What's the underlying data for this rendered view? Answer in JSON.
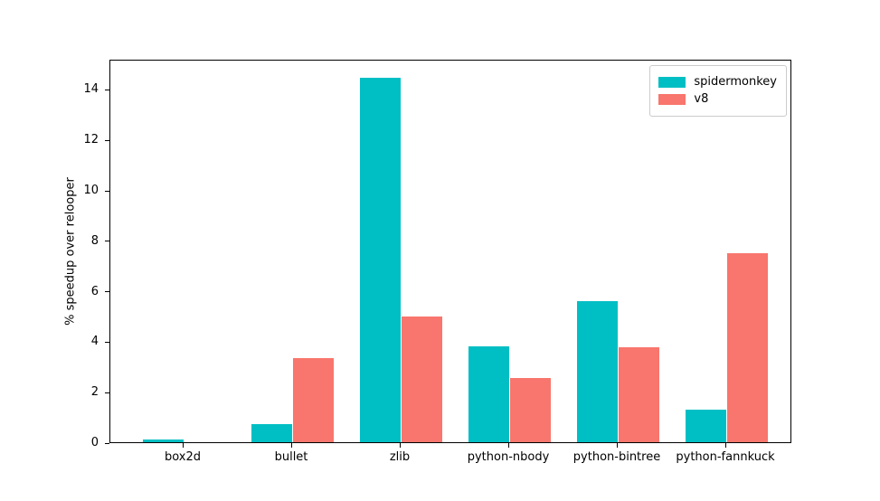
{
  "chart_data": {
    "type": "bar",
    "title": "",
    "xlabel": "",
    "ylabel": "% speedup over relooper",
    "categories": [
      "box2d",
      "bullet",
      "zlib",
      "python-nbody",
      "python-bintree",
      "python-fannkuck"
    ],
    "series": [
      {
        "name": "spidermonkey",
        "color": "#00BFC4",
        "values": [
          0.1,
          0.7,
          14.45,
          3.8,
          5.6,
          1.3
        ]
      },
      {
        "name": "v8",
        "color": "#F8766D",
        "values": [
          0.0,
          3.35,
          5.0,
          2.55,
          3.75,
          7.5
        ]
      }
    ],
    "yticks": [
      0,
      2,
      4,
      6,
      8,
      10,
      12,
      14
    ],
    "ylim": [
      0,
      15.2
    ],
    "grid": false,
    "legend_position": "upper right",
    "background": "#ffffff"
  }
}
